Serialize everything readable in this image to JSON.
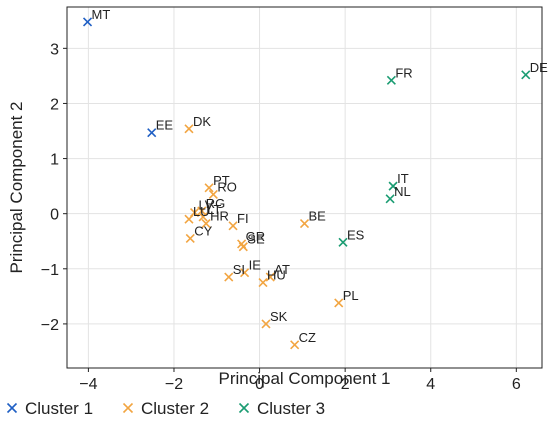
{
  "chart_data": {
    "type": "scatter",
    "title": "",
    "xlabel": "Principal Component 1",
    "ylabel": "Principal Component 2",
    "xlim": [
      -4.5,
      6.6
    ],
    "ylim": [
      -2.8,
      3.75
    ],
    "xticks": [
      -4,
      -2,
      0,
      2,
      4,
      6
    ],
    "yticks": [
      -2,
      -1,
      0,
      1,
      2,
      3
    ],
    "xtick_labels": [
      "−4",
      "−2",
      "0",
      "2",
      "4",
      "6"
    ],
    "ytick_labels": [
      "−2",
      "−1",
      "0",
      "1",
      "2",
      "3"
    ],
    "grid": true,
    "legend_position": "bottom",
    "marker": "x",
    "series": [
      {
        "name": "Cluster 1",
        "color": "#1f5fc4",
        "points": [
          {
            "label": "MT",
            "x": -4.02,
            "y": 3.48
          },
          {
            "label": "EE",
            "x": -2.52,
            "y": 1.47
          }
        ]
      },
      {
        "name": "Cluster 2",
        "color": "#f2a541",
        "points": [
          {
            "label": "DK",
            "x": -1.65,
            "y": 1.54
          },
          {
            "label": "PT",
            "x": -1.18,
            "y": 0.47
          },
          {
            "label": "RO",
            "x": -1.08,
            "y": 0.35
          },
          {
            "label": "RG",
            "x": -1.35,
            "y": 0.05
          },
          {
            "label": "LV",
            "x": -1.52,
            "y": 0.02
          },
          {
            "label": "LT",
            "x": -1.32,
            "y": -0.06
          },
          {
            "label": "LU",
            "x": -1.65,
            "y": -0.1
          },
          {
            "label": "HR",
            "x": -1.25,
            "y": -0.18
          },
          {
            "label": "FI",
            "x": -0.62,
            "y": -0.22
          },
          {
            "label": "CY",
            "x": -1.62,
            "y": -0.45
          },
          {
            "label": "GR",
            "x": -0.42,
            "y": -0.55
          },
          {
            "label": "SE",
            "x": -0.38,
            "y": -0.6
          },
          {
            "label": "IE",
            "x": -0.35,
            "y": -1.07
          },
          {
            "label": "SI",
            "x": -0.72,
            "y": -1.15
          },
          {
            "label": "AT",
            "x": 0.25,
            "y": -1.15
          },
          {
            "label": "HU",
            "x": 0.08,
            "y": -1.25
          },
          {
            "label": "BE",
            "x": 1.05,
            "y": -0.18
          },
          {
            "label": "PL",
            "x": 1.85,
            "y": -1.62
          },
          {
            "label": "SK",
            "x": 0.15,
            "y": -2.0
          },
          {
            "label": "CZ",
            "x": 0.82,
            "y": -2.38
          }
        ]
      },
      {
        "name": "Cluster 3",
        "color": "#1a9c72",
        "points": [
          {
            "label": "FR",
            "x": 3.08,
            "y": 2.42
          },
          {
            "label": "DE",
            "x": 6.22,
            "y": 2.52
          },
          {
            "label": "IT",
            "x": 3.12,
            "y": 0.5
          },
          {
            "label": "NL",
            "x": 3.05,
            "y": 0.27
          },
          {
            "label": "ES",
            "x": 1.95,
            "y": -0.52
          }
        ]
      }
    ]
  }
}
